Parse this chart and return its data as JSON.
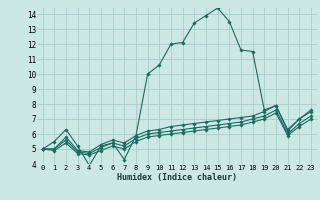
{
  "bg_color": "#cce8e4",
  "grid_color": "#aacccc",
  "line_color": "#1a6b5e",
  "xlabel": "Humidex (Indice chaleur)",
  "xlim": [
    -0.5,
    23.5
  ],
  "ylim": [
    4,
    14.4
  ],
  "xticks": [
    0,
    1,
    2,
    3,
    4,
    5,
    6,
    7,
    8,
    9,
    10,
    11,
    12,
    13,
    14,
    15,
    16,
    17,
    18,
    19,
    20,
    21,
    22,
    23
  ],
  "yticks": [
    4,
    5,
    6,
    7,
    8,
    9,
    10,
    11,
    12,
    13,
    14
  ],
  "series": [
    [
      5.0,
      5.5,
      6.3,
      5.2,
      3.9,
      5.2,
      5.4,
      4.3,
      5.9,
      10.0,
      10.6,
      12.0,
      12.1,
      13.4,
      13.9,
      14.4,
      13.5,
      11.6,
      11.5,
      7.6,
      7.9,
      6.2,
      7.0,
      7.6
    ],
    [
      5.0,
      5.0,
      5.8,
      4.9,
      4.8,
      5.3,
      5.6,
      5.4,
      5.9,
      6.2,
      6.3,
      6.5,
      6.6,
      6.7,
      6.8,
      6.9,
      7.0,
      7.1,
      7.2,
      7.5,
      7.9,
      6.3,
      7.0,
      7.5
    ],
    [
      5.0,
      5.0,
      5.6,
      4.8,
      4.7,
      5.1,
      5.4,
      5.2,
      5.7,
      6.0,
      6.1,
      6.2,
      6.3,
      6.4,
      6.5,
      6.6,
      6.7,
      6.8,
      7.0,
      7.2,
      7.6,
      6.0,
      6.7,
      7.2
    ],
    [
      5.0,
      4.9,
      5.4,
      4.7,
      4.6,
      4.9,
      5.2,
      5.0,
      5.5,
      5.8,
      5.9,
      6.0,
      6.1,
      6.2,
      6.3,
      6.4,
      6.5,
      6.6,
      6.8,
      7.0,
      7.4,
      5.9,
      6.5,
      7.0
    ]
  ]
}
